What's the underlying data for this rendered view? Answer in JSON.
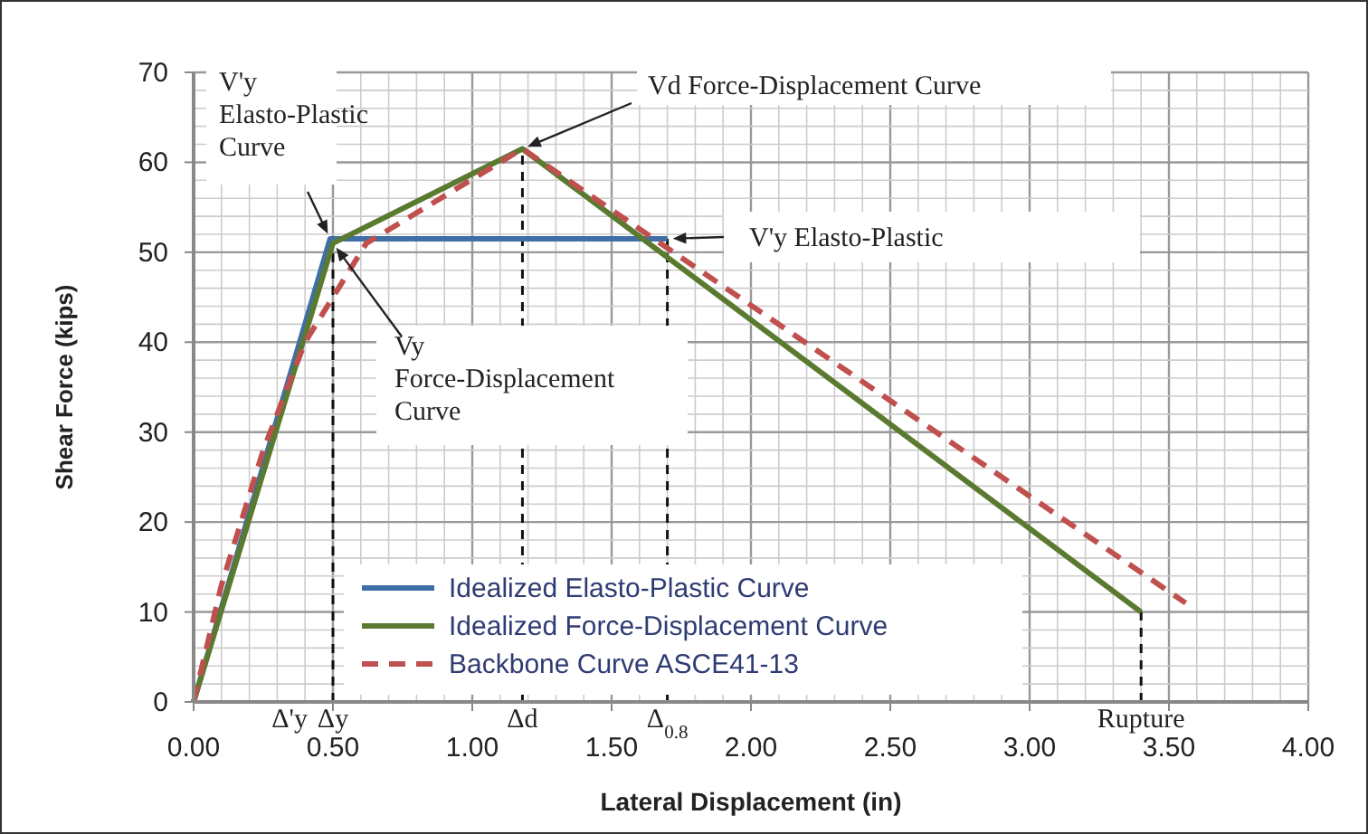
{
  "chart_data": {
    "type": "line",
    "xlabel": "Lateral Displacement (in)",
    "ylabel": "Shear Force (kips)",
    "xlim": [
      0,
      4
    ],
    "ylim": [
      0,
      70
    ],
    "xticks": [
      {
        "value": 0,
        "label": "0.00"
      },
      {
        "value": 0.5,
        "label": "0.50"
      },
      {
        "value": 1,
        "label": "1.00"
      },
      {
        "value": 1.5,
        "label": "1.50"
      },
      {
        "value": 2,
        "label": "2.00"
      },
      {
        "value": 2.5,
        "label": "2.50"
      },
      {
        "value": 3,
        "label": "3.00"
      },
      {
        "value": 3.5,
        "label": "3.50"
      },
      {
        "value": 4,
        "label": "4.00"
      }
    ],
    "yticks": [
      0,
      10,
      20,
      30,
      40,
      50,
      60,
      70
    ],
    "grid": true,
    "legend": "bottom",
    "series": [
      {
        "name": "Idealized Elasto-Plastic Curve",
        "color": "#3f6fa6",
        "x": [
          0,
          0.49,
          1.7
        ],
        "values": [
          0,
          51.5,
          51.5
        ]
      },
      {
        "name": "Idealized Force-Displacement Curve",
        "color": "#5a7a30",
        "x": [
          0,
          0.5,
          1.18,
          3.4
        ],
        "values": [
          0,
          51,
          61.5,
          10
        ]
      },
      {
        "name": "Backbone Curve ASCE41-13",
        "color": "#c0504d",
        "line_style": "dashed",
        "x": [
          0,
          0.1,
          0.25,
          0.4,
          0.5,
          0.62,
          1.18,
          3.56
        ],
        "values": [
          0,
          13,
          28,
          40,
          45,
          51,
          61.5,
          11
        ]
      }
    ],
    "annotations": [
      {
        "text": "V'y\nElasto-Plastic\nCurve",
        "x": 0.49,
        "y": 51.5
      },
      {
        "text": "Vd Force-Displacement Curve",
        "x": 1.18,
        "y": 61.5
      },
      {
        "text": "V'y Elasto-Plastic",
        "x": 1.7,
        "y": 51.5
      },
      {
        "text": "Vy\nForce-Displacement\nCurve",
        "x": 0.5,
        "y": 51
      },
      "Δ'y",
      {
        "text": "Δy",
        "x": 0.5,
        "y": 51
      },
      {
        "text": "Δd",
        "x": 1.18,
        "y": 61.5
      },
      {
        "text": "Δ$_{0.8}$",
        "x": 1.7,
        "y": 51.5
      },
      {
        "text": "Rupture",
        "x": 3.4,
        "y": 10
      }
    ]
  }
}
